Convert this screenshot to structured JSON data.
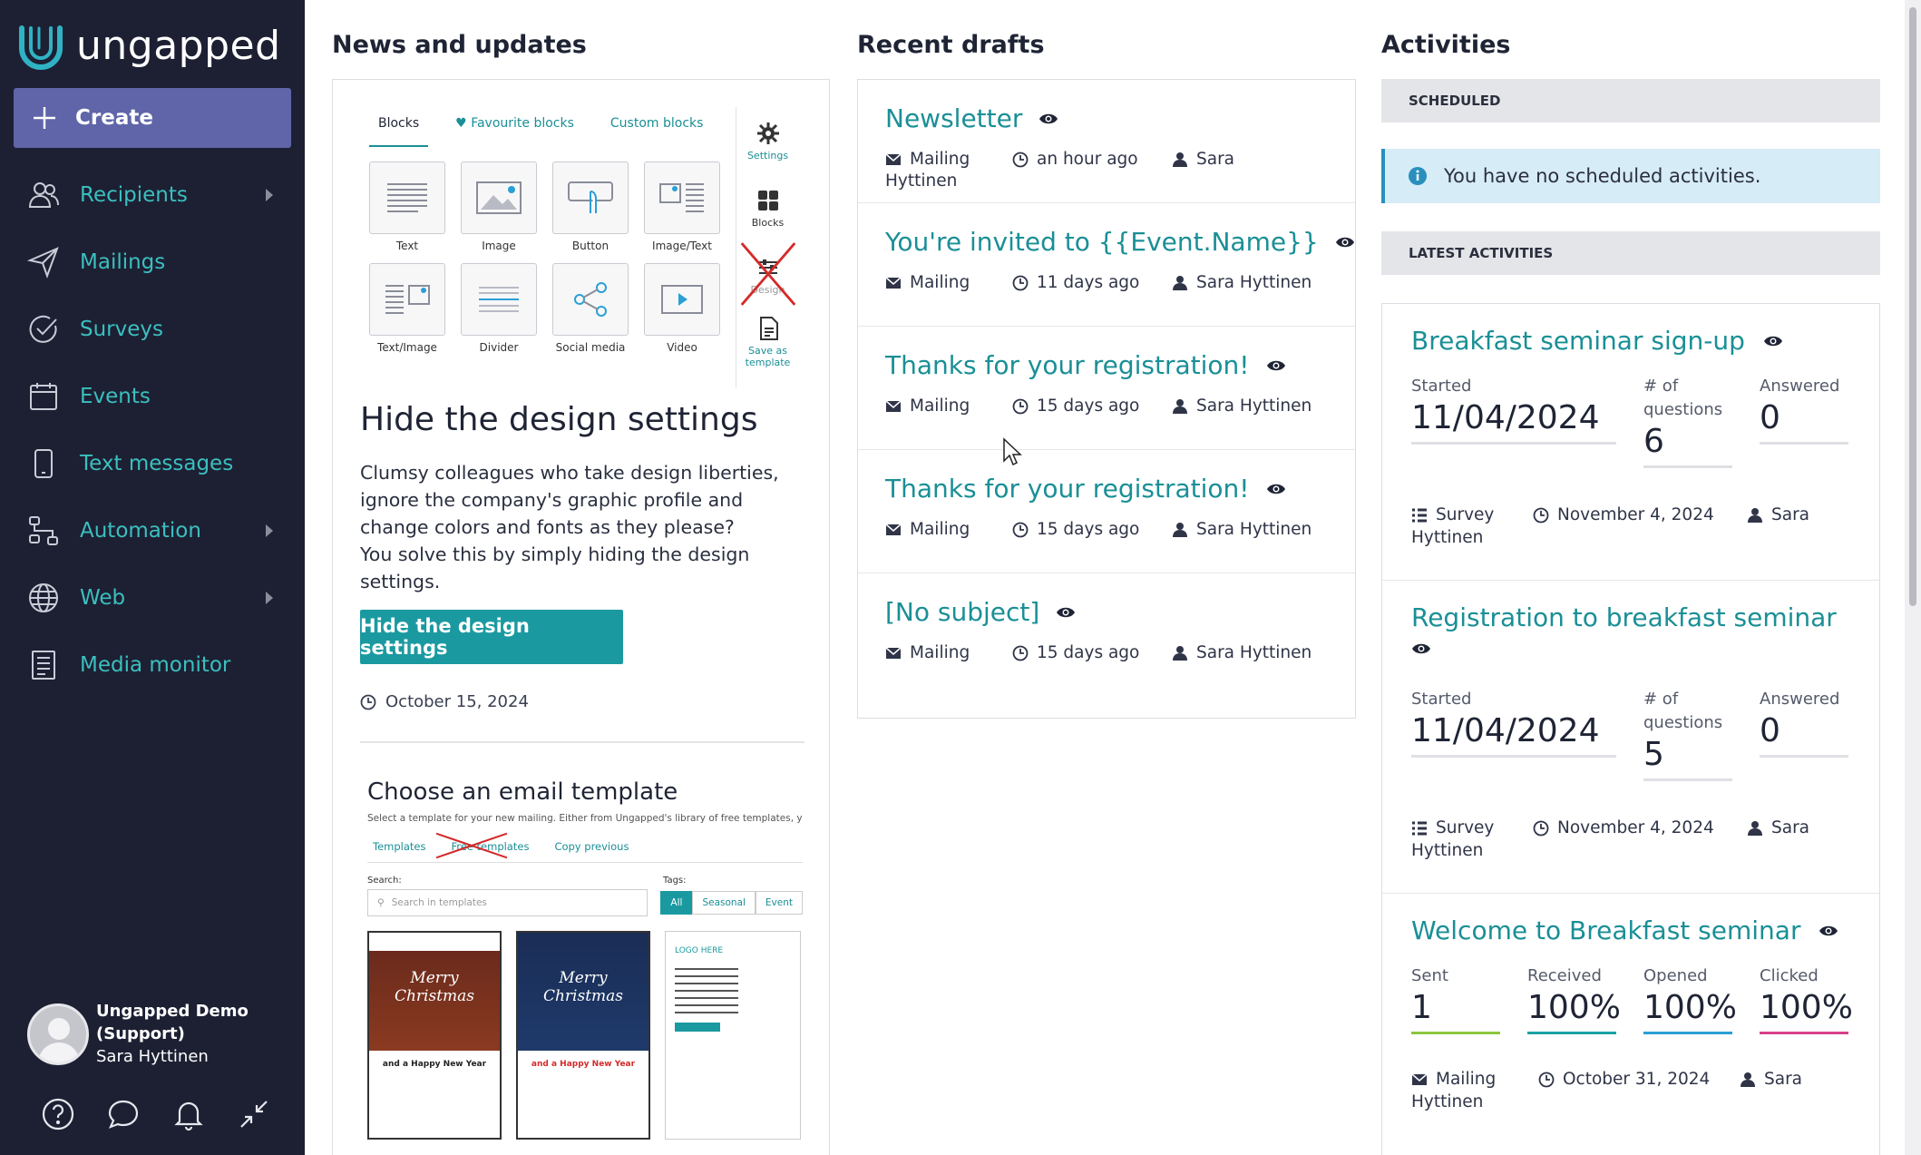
{
  "brand": {
    "name": "ungapped"
  },
  "sidebar": {
    "create_label": "Create",
    "items": [
      {
        "label": "Recipients",
        "icon": "people-icon",
        "has_submenu": true
      },
      {
        "label": "Mailings",
        "icon": "paper-plane-icon",
        "has_submenu": false
      },
      {
        "label": "Surveys",
        "icon": "check-circle-icon",
        "has_submenu": false
      },
      {
        "label": "Events",
        "icon": "calendar-icon",
        "has_submenu": false
      },
      {
        "label": "Text messages",
        "icon": "phone-icon",
        "has_submenu": false
      },
      {
        "label": "Automation",
        "icon": "flow-icon",
        "has_submenu": true
      },
      {
        "label": "Web",
        "icon": "globe-icon",
        "has_submenu": true
      },
      {
        "label": "Media monitor",
        "icon": "newspaper-icon",
        "has_submenu": false
      }
    ],
    "user": {
      "org_line1": "Ungapped Demo",
      "org_line2": "(Support)",
      "name": "Sara Hyttinen"
    },
    "bottom_icons": [
      "help-icon",
      "chat-icon",
      "bell-icon",
      "collapse-icon"
    ]
  },
  "news": {
    "heading": "News and updates",
    "editor": {
      "tabs": [
        "Blocks",
        "Favourite blocks",
        "Custom blocks"
      ],
      "blocks": [
        "Text",
        "Image",
        "Button",
        "Image/Text",
        "Text/Image",
        "Divider",
        "Social media",
        "Video"
      ],
      "side": [
        "Settings",
        "Blocks",
        "Design",
        "Save as template"
      ]
    },
    "title": "Hide the design settings",
    "body_1": "Clumsy colleagues who take design liberties, ignore the company's graphic profile and change colors and fonts as they please?",
    "body_2": "You solve this by simply hiding the design settings.",
    "button": "Hide the design settings",
    "date": "October 15, 2024",
    "template_preview": {
      "title": "Choose an email template",
      "subtitle": "Select a template for your new mailing. Either from Ungapped's library of free templates, your own saved te",
      "tabs": [
        "Templates",
        "Free templates",
        "Copy previous"
      ],
      "search_label": "Search:",
      "search_placeholder": "Search in templates",
      "tags_label": "Tags:",
      "tags": [
        "All",
        "Seasonal",
        "Event"
      ],
      "thumb1_title": "Merry Christmas",
      "thumb1_sub": "and a Happy New Year",
      "thumb2_title": "Merry Christmas",
      "thumb2_sub": "and a Happy New Year",
      "thumb3_logo": "LOGO HERE"
    }
  },
  "drafts": {
    "heading": "Recent drafts",
    "items": [
      {
        "title": "Newsletter",
        "type": "Mailing",
        "time": "an hour ago",
        "user": "Sara",
        "user_wrap": "Hyttinen"
      },
      {
        "title": "You're invited to {{Event.Name}}",
        "type": "Mailing",
        "time": "11 days ago",
        "user": "Sara Hyttinen"
      },
      {
        "title": "Thanks for your registration!",
        "type": "Mailing",
        "time": "15 days ago",
        "user": "Sara Hyttinen"
      },
      {
        "title": "Thanks for your registration!",
        "type": "Mailing",
        "time": "15 days ago",
        "user": "Sara Hyttinen"
      },
      {
        "title": "[No subject]",
        "type": "Mailing",
        "time": "15 days ago",
        "user": "Sara Hyttinen"
      }
    ]
  },
  "activities": {
    "heading": "Activities",
    "scheduled_label": "SCHEDULED",
    "no_scheduled": "You have no scheduled activities.",
    "latest_label": "LATEST ACTIVITIES",
    "items": [
      {
        "title": "Breakfast seminar sign-up",
        "stats": [
          {
            "label": "Started",
            "value": "11/04/2024"
          },
          {
            "label": "# of questions",
            "value": "6"
          },
          {
            "label": "Answered",
            "value": "0"
          }
        ],
        "type": "Survey",
        "type_wrap": "Hyttinen",
        "date": "November 4, 2024",
        "user": "Sara"
      },
      {
        "title": "Registration to breakfast seminar",
        "stats": [
          {
            "label": "Started",
            "value": "11/04/2024"
          },
          {
            "label": "# of questions",
            "value": "5"
          },
          {
            "label": "Answered",
            "value": "0"
          }
        ],
        "type": "Survey",
        "type_wrap": "Hyttinen",
        "date": "November 4, 2024",
        "user": "Sara"
      },
      {
        "title": "Welcome to Breakfast seminar",
        "stats": [
          {
            "label": "Sent",
            "value": "1",
            "color": "#8cc63f"
          },
          {
            "label": "Received",
            "value": "100%",
            "color": "#1aa3a3"
          },
          {
            "label": "Opened",
            "value": "100%",
            "color": "#2a9fd6"
          },
          {
            "label": "Clicked",
            "value": "100%",
            "color": "#d9408a"
          }
        ],
        "type": "Mailing",
        "type_wrap": "Hyttinen",
        "date": "October 31, 2024",
        "user": "Sara"
      }
    ]
  },
  "colors": {
    "sidebar_bg": "#1d2033",
    "accent": "#1a8f96",
    "create_bg": "#5f65a8",
    "info_bg": "#d6ecf6"
  }
}
